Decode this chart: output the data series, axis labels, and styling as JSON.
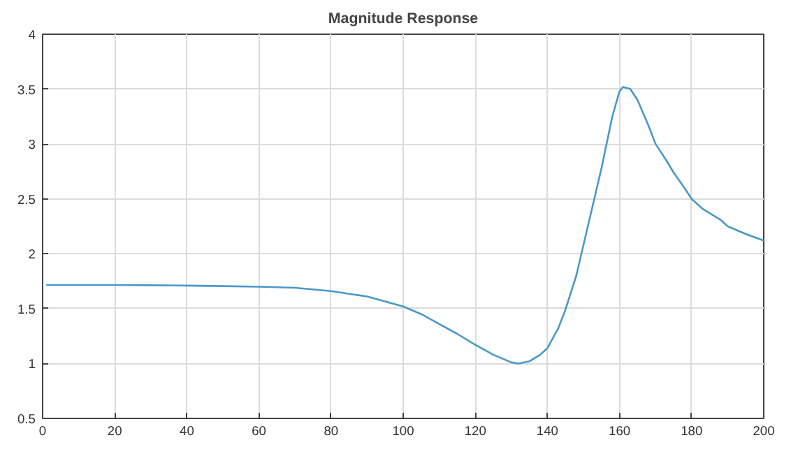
{
  "chart_data": {
    "type": "line",
    "title": "Magnitude Response",
    "x": [
      1,
      10,
      20,
      30,
      40,
      50,
      60,
      70,
      80,
      90,
      100,
      105,
      110,
      115,
      120,
      125,
      130,
      132,
      135,
      138,
      140,
      143,
      145,
      148,
      150,
      153,
      155,
      158,
      160,
      161,
      163,
      165,
      168,
      170,
      173,
      175,
      178,
      180,
      183,
      185,
      186,
      188,
      190,
      195,
      200
    ],
    "series": [
      {
        "color": "#4a98c9",
        "values": [
          1.715,
          1.715,
          1.715,
          1.713,
          1.71,
          1.705,
          1.7,
          1.69,
          1.66,
          1.61,
          1.52,
          1.45,
          1.36,
          1.27,
          1.17,
          1.08,
          1.01,
          1.0,
          1.02,
          1.08,
          1.14,
          1.32,
          1.49,
          1.8,
          2.08,
          2.5,
          2.78,
          3.25,
          3.48,
          3.52,
          3.5,
          3.4,
          3.17,
          3.0,
          2.85,
          2.74,
          2.6,
          2.5,
          2.41,
          2.37,
          2.35,
          2.31,
          2.25,
          2.18,
          2.12
        ]
      }
    ],
    "xlim": [
      0,
      200
    ],
    "ylim": [
      0.5,
      4
    ],
    "xticks": [
      0,
      20,
      40,
      60,
      80,
      100,
      120,
      140,
      160,
      180,
      200
    ],
    "yticks": [
      0.5,
      1,
      1.5,
      2,
      2.5,
      3,
      3.5,
      4
    ],
    "grid": true,
    "line_style": "solid",
    "marker": "none"
  }
}
